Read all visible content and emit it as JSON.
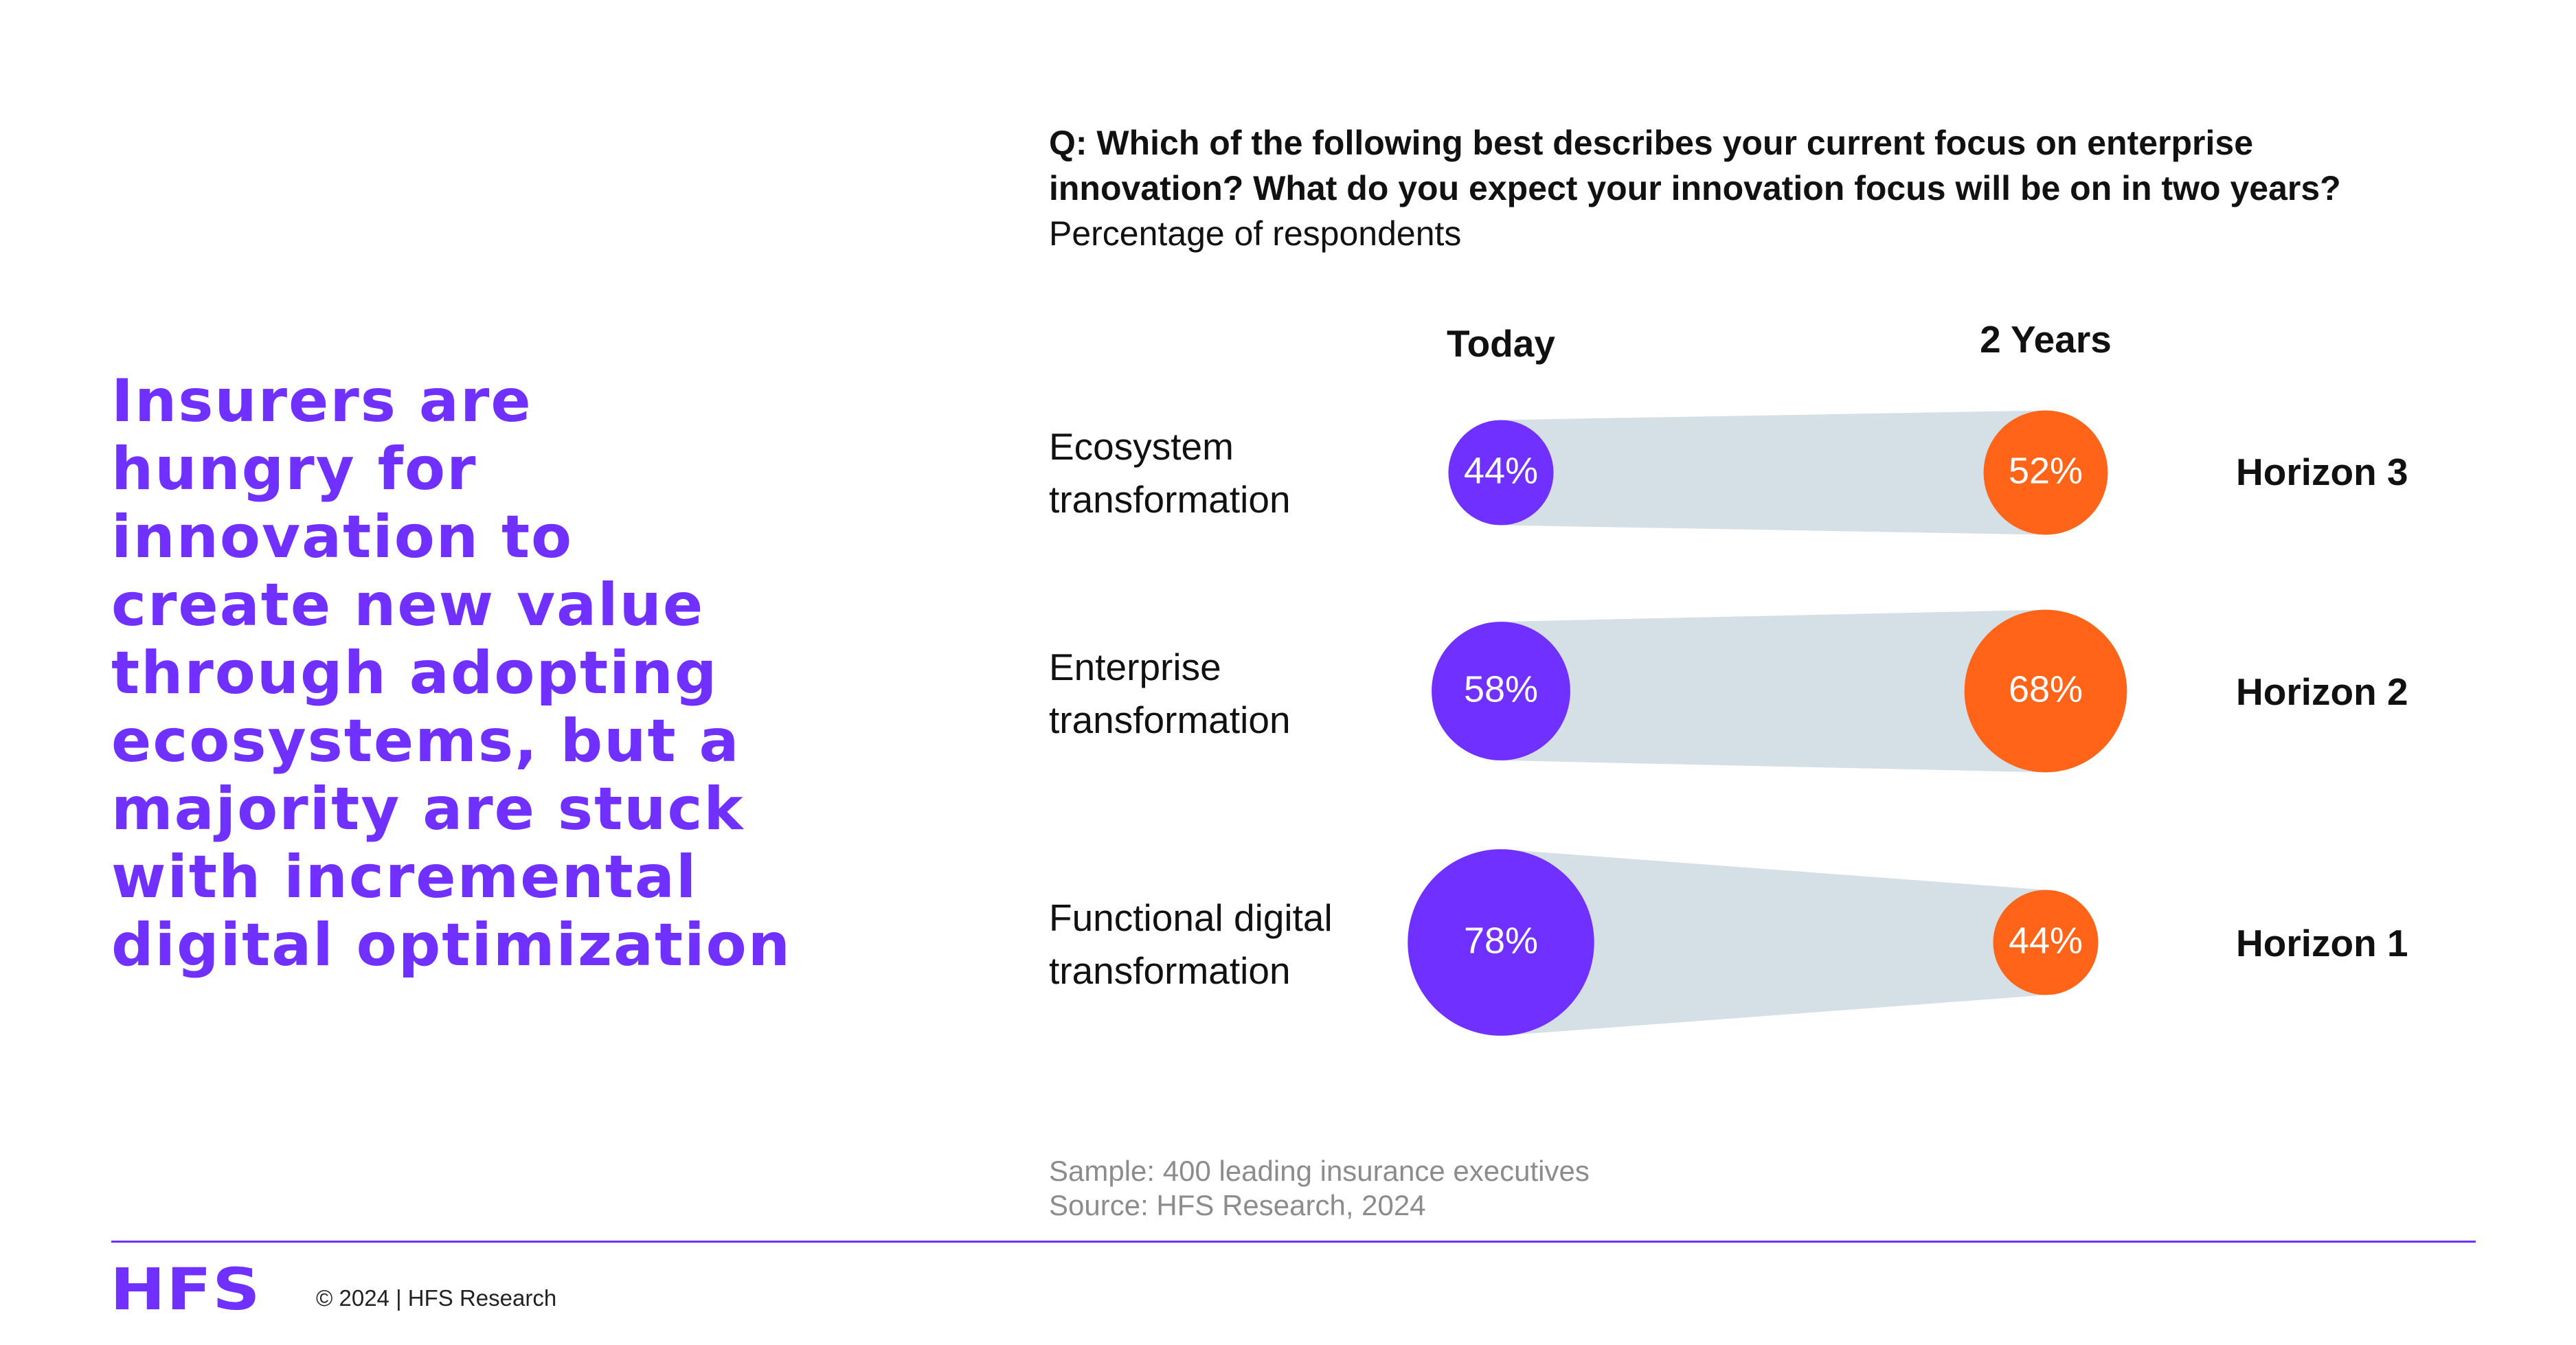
{
  "headline_lines": [
    "Insurers are",
    "hungry for",
    "innovation to",
    "create new value",
    "through adopting",
    "ecosystems, but a",
    "majority are stuck",
    "with incremental",
    "digital optimization"
  ],
  "question": "Q: Which of the following best describes your current focus on enterprise innovation? What do you expect your innovation focus will be on in two years?",
  "subtitle": "Percentage of respondents",
  "columns": {
    "today": "Today",
    "future": "2 Years"
  },
  "colors": {
    "today": "#7030ff",
    "future": "#ff6418",
    "band": "#d5dfe6",
    "accent": "#7030ff"
  },
  "rows": [
    {
      "label_lines": [
        "Ecosystem",
        "transformation"
      ],
      "horizon": "Horizon 3"
    },
    {
      "label_lines": [
        "Enterprise",
        "transformation"
      ],
      "horizon": "Horizon 2"
    },
    {
      "label_lines": [
        "Functional digital",
        "transformation"
      ],
      "horizon": "Horizon 1"
    }
  ],
  "chart_data": {
    "type": "bubble-slope",
    "categories": [
      "Ecosystem transformation",
      "Enterprise transformation",
      "Functional digital transformation"
    ],
    "series": [
      {
        "name": "Today",
        "values": [
          44,
          58,
          78
        ]
      },
      {
        "name": "2 Years",
        "values": [
          52,
          68,
          44
        ]
      }
    ],
    "value_labels": {
      "Today": [
        "44%",
        "58%",
        "78%"
      ],
      "2 Years": [
        "52%",
        "68%",
        "44%"
      ]
    }
  },
  "footnote": {
    "sample": "Sample: 400 leading insurance executives",
    "source": "Source: HFS Research, 2024"
  },
  "footer": {
    "logo": "HFS",
    "copyright": "© 2024 | HFS Research"
  }
}
